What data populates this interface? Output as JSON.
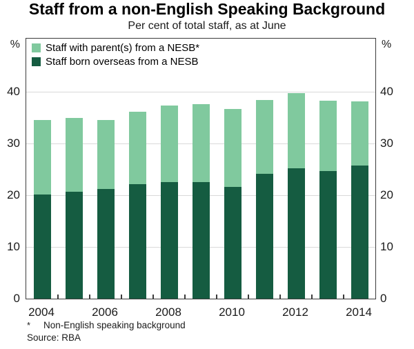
{
  "header": {
    "title": "Staff from a non-English Speaking Background",
    "subtitle": "Per cent of total staff, as at June"
  },
  "legend": {
    "items": [
      {
        "label": "Staff with parent(s) from a NESB*",
        "color": "#80c99e"
      },
      {
        "label": "Staff born overseas from a NESB",
        "color": "#155c41"
      }
    ]
  },
  "axis": {
    "unit_left": "%",
    "unit_right": "%"
  },
  "footnotes": {
    "star_symbol": "*",
    "star_text": "Non-English speaking background",
    "source": "Source: RBA"
  },
  "colors": {
    "light_green": "#80c99e",
    "dark_green": "#155c41",
    "gridline": "#d9d9d9",
    "frame": "#3a3a3a"
  },
  "chart_data": {
    "type": "bar",
    "stacked": true,
    "title": "Staff from a non-English Speaking Background",
    "subtitle": "Per cent of total staff, as at June",
    "ylabel": "%",
    "ylim": [
      0,
      50.3
    ],
    "yticks": [
      0,
      10,
      20,
      30,
      40
    ],
    "grid": true,
    "legend_position": "top-left",
    "categories": [
      2004,
      2005,
      2006,
      2007,
      2008,
      2009,
      2010,
      2011,
      2012,
      2013,
      2014
    ],
    "series": [
      {
        "name": "Staff born overseas from a NESB",
        "color": "#155c41",
        "values": [
          20.1,
          20.7,
          21.2,
          22.2,
          22.6,
          22.6,
          21.6,
          24.2,
          25.2,
          24.7,
          25.7
        ]
      },
      {
        "name": "Staff with parent(s) from a NESB*",
        "color": "#80c99e",
        "values": [
          14.5,
          14.2,
          13.3,
          13.9,
          14.8,
          15.0,
          15.1,
          14.2,
          14.5,
          13.6,
          12.4
        ]
      }
    ],
    "totals": [
      34.6,
      34.9,
      34.5,
      36.1,
      37.4,
      37.6,
      36.7,
      38.4,
      39.7,
      38.3,
      38.1
    ],
    "xtick_labels": [
      "2004",
      "2006",
      "2008",
      "2010",
      "2012",
      "2014"
    ],
    "xtick_slot_indexes": [
      0,
      2,
      4,
      6,
      8,
      10
    ]
  }
}
